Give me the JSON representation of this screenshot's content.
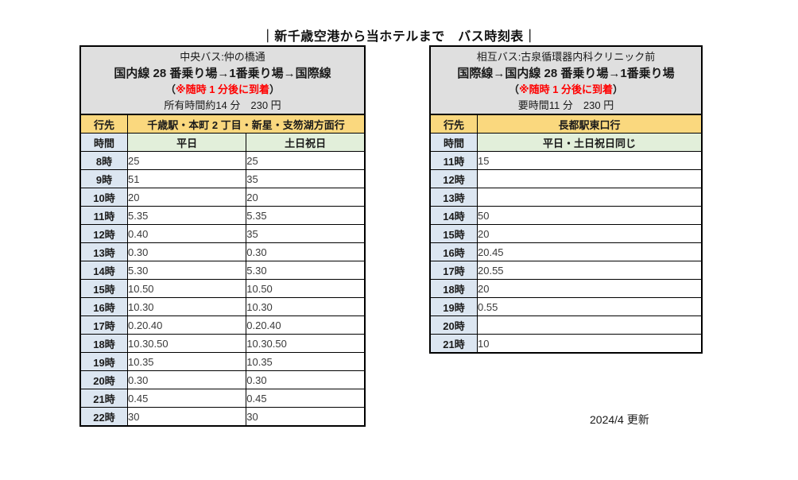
{
  "title": "｜新千歳空港から当ホテルまで　バス時刻表｜",
  "footer": {
    "updated": "2024/4 更新"
  },
  "colors": {
    "accent_orange": "#FAD87E",
    "accent_blue": "#DCE6F1",
    "accent_green": "#E2EFDA",
    "header_gray": "#DFDFDF",
    "note_red": "#FF0000"
  },
  "left_table": {
    "operator": "中央バス:仲の橋通",
    "route": "国内線 28 番乗り場→1番乗り場→国際線",
    "note_open": "（",
    "note": "※随時 1 分後に到着",
    "note_close": "）",
    "duration": "所有時間約14 分　230 円",
    "dest_label": "行先",
    "dest_value": "千歳駅・本町 2 丁目・新星・支笏湖方面行",
    "time_label": "時間",
    "day_headers": [
      "平日",
      "土日祝日"
    ],
    "rows": [
      {
        "time": "8時",
        "values": [
          "25",
          "25"
        ]
      },
      {
        "time": "9時",
        "values": [
          "51",
          "35"
        ]
      },
      {
        "time": "10時",
        "values": [
          "20",
          "20"
        ]
      },
      {
        "time": "11時",
        "values": [
          "5.35",
          "5.35"
        ]
      },
      {
        "time": "12時",
        "values": [
          "0.40",
          "35"
        ]
      },
      {
        "time": "13時",
        "values": [
          "0.30",
          "0.30"
        ]
      },
      {
        "time": "14時",
        "values": [
          "5.30",
          "5.30"
        ]
      },
      {
        "time": "15時",
        "values": [
          "10.50",
          "10.50"
        ]
      },
      {
        "time": "16時",
        "values": [
          "10.30",
          "10.30"
        ]
      },
      {
        "time": "17時",
        "values": [
          "0.20.40",
          "0.20.40"
        ]
      },
      {
        "time": "18時",
        "values": [
          "10.30.50",
          "10.30.50"
        ]
      },
      {
        "time": "19時",
        "values": [
          "10.35",
          "10.35"
        ]
      },
      {
        "time": "20時",
        "values": [
          "0.30",
          "0.30"
        ]
      },
      {
        "time": "21時",
        "values": [
          "0.45",
          "0.45"
        ]
      },
      {
        "time": "22時",
        "values": [
          "30",
          "30"
        ]
      }
    ]
  },
  "right_table": {
    "operator": "相互バス:古泉循環器内科クリニック前",
    "route": "国際線→国内線 28 番乗り場→1番乗り場",
    "note_open": "（",
    "note": "※随時 1 分後に到着",
    "note_close": "）",
    "duration": "要時間11 分　230 円",
    "dest_label": "行先",
    "dest_value": "長都駅東口行",
    "time_label": "時間",
    "day_headers": [
      "平日・土日祝日同じ"
    ],
    "rows": [
      {
        "time": "11時",
        "values": [
          "15"
        ]
      },
      {
        "time": "12時",
        "values": [
          ""
        ]
      },
      {
        "time": "13時",
        "values": [
          ""
        ]
      },
      {
        "time": "14時",
        "values": [
          "50"
        ]
      },
      {
        "time": "15時",
        "values": [
          "20"
        ]
      },
      {
        "time": "16時",
        "values": [
          "20.45"
        ]
      },
      {
        "time": "17時",
        "values": [
          "20.55"
        ]
      },
      {
        "time": "18時",
        "values": [
          "20"
        ]
      },
      {
        "time": "19時",
        "values": [
          "0.55"
        ]
      },
      {
        "time": "20時",
        "values": [
          ""
        ]
      },
      {
        "time": "21時",
        "values": [
          "10"
        ]
      }
    ]
  }
}
